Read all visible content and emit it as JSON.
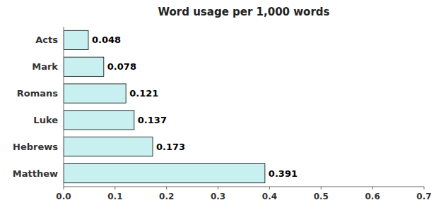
{
  "chart_data": {
    "type": "bar",
    "orientation": "horizontal",
    "title": "Word usage per 1,000 words",
    "categories": [
      "Matthew",
      "Hebrews",
      "Luke",
      "Romans",
      "Mark",
      "Acts"
    ],
    "values": [
      0.391,
      0.173,
      0.137,
      0.121,
      0.078,
      0.048
    ],
    "color": "#c8f0f0",
    "xlim": [
      0.0,
      0.7
    ],
    "xticks": [
      {
        "value": 0.0,
        "label": "0.0"
      },
      0.1,
      0.2,
      0.3,
      0.4,
      0.5,
      0.6,
      0.7
    ],
    "data_labels": true,
    "grid": false
  }
}
